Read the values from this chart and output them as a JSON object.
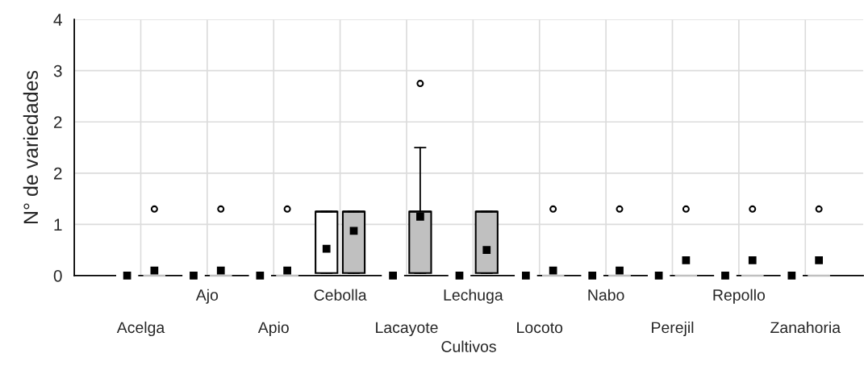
{
  "chart_data": {
    "type": "box",
    "xlabel": "Cultivos",
    "ylabel": "N° de variedades",
    "categories": [
      "Acelga",
      "Ajo",
      "Apio",
      "Cebolla",
      "Lacayote",
      "Lechuga",
      "Locoto",
      "Nabo",
      "Perejil",
      "Repollo",
      "Zanahoria"
    ],
    "ylim": [
      0,
      4
    ],
    "yticks": [
      0,
      {
        "value": 0.8,
        "label": "1"
      },
      {
        "value": 1.6,
        "label": "2"
      },
      {
        "value": 2.4,
        "label": "2"
      },
      {
        "value": 3.2,
        "label": "3"
      },
      4
    ],
    "grid": true,
    "legend": false,
    "series": [
      {
        "color": "#ffffff",
        "boxes": [
          {
            "low": 0,
            "q1": 0,
            "median": 0,
            "q3": 0,
            "high": 0,
            "mean": 0
          },
          {
            "low": 0,
            "q1": 0,
            "median": 0,
            "q3": 0,
            "high": 0,
            "mean": 0
          },
          {
            "low": 0,
            "q1": 0,
            "median": 0,
            "q3": 0,
            "high": 0,
            "mean": 0
          },
          {
            "low": 0.04,
            "q1": 0.04,
            "median": 1,
            "q3": 1,
            "high": 1,
            "mean": 0.42
          },
          {
            "low": 0,
            "q1": 0,
            "median": 0,
            "q3": 0,
            "high": 0,
            "mean": 0
          },
          {
            "low": 0,
            "q1": 0,
            "median": 0,
            "q3": 0,
            "high": 0,
            "mean": 0
          },
          {
            "low": 0,
            "q1": 0,
            "median": 0,
            "q3": 0,
            "high": 0,
            "mean": 0
          },
          {
            "low": 0,
            "q1": 0,
            "median": 0,
            "q3": 0,
            "high": 0,
            "mean": 0
          },
          {
            "low": 0,
            "q1": 0,
            "median": 0,
            "q3": 0,
            "high": 0,
            "mean": 0
          },
          {
            "low": 0,
            "q1": 0,
            "median": 0,
            "q3": 0,
            "high": 0,
            "mean": 0
          },
          {
            "low": 0,
            "q1": 0,
            "median": 0,
            "q3": 0,
            "high": 0,
            "mean": 0
          }
        ]
      },
      {
        "color": "#c0c0c0",
        "boxes": [
          {
            "low": 0,
            "q1": 0,
            "median": 0,
            "q3": 0,
            "high": 0,
            "mean": 0.08,
            "outliers": [
              1.04
            ]
          },
          {
            "low": 0,
            "q1": 0,
            "median": 0,
            "q3": 0,
            "high": 0,
            "mean": 0.08,
            "outliers": [
              1.04
            ]
          },
          {
            "low": 0,
            "q1": 0,
            "median": 0,
            "q3": 0,
            "high": 0,
            "mean": 0.08,
            "outliers": [
              1.04
            ]
          },
          {
            "low": 0.04,
            "q1": 0.04,
            "median": 1,
            "q3": 1,
            "high": 1,
            "mean": 0.7
          },
          {
            "low": 0.04,
            "q1": 0.04,
            "median": 1,
            "q3": 1,
            "high": 2,
            "mean": 0.92,
            "outliers": [
              3
            ]
          },
          {
            "low": 0.04,
            "q1": 0.04,
            "median": 1,
            "q3": 1,
            "high": 1,
            "mean": 0.4
          },
          {
            "low": 0,
            "q1": 0,
            "median": 0,
            "q3": 0,
            "high": 0,
            "mean": 0.08,
            "outliers": [
              1.04
            ]
          },
          {
            "low": 0,
            "q1": 0,
            "median": 0,
            "q3": 0,
            "high": 0,
            "mean": 0.08,
            "outliers": [
              1.04
            ]
          },
          {
            "low": 0,
            "q1": 0,
            "median": 0,
            "q3": 0,
            "high": 0,
            "mean": 0.24,
            "outliers": [
              1.04
            ]
          },
          {
            "low": 0,
            "q1": 0,
            "median": 0,
            "q3": 0,
            "high": 0,
            "mean": 0.24,
            "outliers": [
              1.04
            ]
          },
          {
            "low": 0,
            "q1": 0,
            "median": 0,
            "q3": 0,
            "high": 0,
            "mean": 0.24,
            "outliers": [
              1.04
            ]
          }
        ]
      }
    ]
  }
}
